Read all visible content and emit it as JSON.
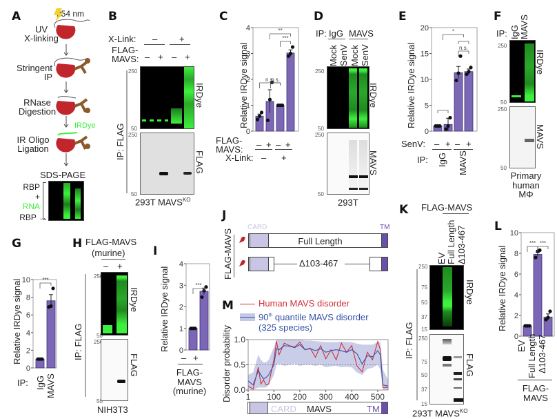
{
  "panels": {
    "A": {
      "label": "A",
      "uv_wavelength": "254 nm",
      "steps": [
        "UV\nX-linking",
        "Stringent\nIP",
        "RNase\nDigestion",
        "IR Oligo\nLigation"
      ],
      "step1": "UV",
      "step1b": "X-linking",
      "step2": "Stringent",
      "step2b": "IP",
      "step3": "RNase",
      "step3b": "Digestion",
      "step4": "IR Oligo",
      "step4b": "Ligation",
      "irdye_tag": "IRDye",
      "gel_title": "SDS-PAGE",
      "gel_rbp": "RBP",
      "gel_plus": "+",
      "gel_rna": "RNA",
      "gel_rbp_arrow": "RBP →"
    },
    "B": {
      "label": "B",
      "xlink_label": "X-Link:",
      "xlink_minus": "–",
      "xlink_plus": "+",
      "flag_label1": "FLAG-",
      "flag_label2": "MAVS:",
      "lanes": [
        "–",
        "+",
        "–",
        "+"
      ],
      "mw_top": "250",
      "mw_bottom": "50",
      "blot_top": "IRDye",
      "blot_bottom": "FLAG",
      "ip": "IP: FLAG",
      "cell_line": "293T MAVS",
      "cell_sup": "KO"
    },
    "C": {
      "label": "C",
      "ylabel": "Relative IRDye signal",
      "flag1": "FLAG-",
      "flag2": "MAVS:",
      "xlink": "X-Link:",
      "lanes": [
        "–",
        "+",
        "–",
        "+"
      ],
      "xlink_vals": [
        "–",
        "+"
      ],
      "sig": [
        "n.s.",
        "n.s.",
        "**",
        "***"
      ]
    },
    "D": {
      "label": "D",
      "ip": "IP:",
      "ip_igg": "IgG",
      "ip_mavs": "MAVS",
      "lanes": [
        "Mock",
        "SenV",
        "Mock",
        "SenV"
      ],
      "mw_top": "250",
      "mw_bottom": "50",
      "blot_top": "IRDye",
      "blot_bottom": "MAVS",
      "cell_line": "293T"
    },
    "E": {
      "label": "E",
      "ylabel": "Relative IRDye signal",
      "senv": "SenV:",
      "lanes": [
        "–",
        "+",
        "–",
        "+"
      ],
      "ip": "IP:",
      "ip_groups": [
        "IgG",
        "MAVS"
      ],
      "sig": [
        "*",
        "n.s."
      ]
    },
    "F": {
      "label": "F",
      "ip": "IP:",
      "lanes": [
        "IgG",
        "MAVS"
      ],
      "mw_top": "250",
      "mw_bottom": "50",
      "blot_top": "IRDye",
      "blot_bottom": "MAVS",
      "cell1": "Primary",
      "cell2": "human",
      "cell3": "MΦ"
    },
    "G": {
      "label": "G",
      "ylabel": "Relative IRDye signal",
      "ip": "IP:",
      "categories": [
        "IgG",
        "MAVS"
      ],
      "sig": "***"
    },
    "H": {
      "label": "H",
      "title1": "FLAG-MAVS",
      "title2": "(murine)",
      "lanes": [
        "–",
        "+"
      ],
      "mw_top": "250",
      "mw_bottom": "50",
      "blot_top": "IRDye",
      "blot_bottom": "FLAG",
      "ip": "IP: FLAG",
      "cell_line": "NIH3T3"
    },
    "I": {
      "label": "I",
      "ylabel": "Relative IRDye signal",
      "lanes": [
        "–",
        "+"
      ],
      "x1": "FLAG-",
      "x2": "MAVS",
      "x3": "(murine)",
      "sig": "***"
    },
    "J": {
      "label": "J",
      "side": "FLAG-MAVS",
      "card": "CARD",
      "tm": "TM",
      "full": "Full Length",
      "delta": "Δ103-467"
    },
    "K": {
      "label": "K",
      "title": "FLAG-MAVS",
      "lanes": [
        "EV",
        "Full Length",
        "Δ103-467"
      ],
      "mw": [
        "250",
        "75",
        "50",
        "37",
        "15"
      ],
      "blot_top": "IRDye",
      "blot_bottom": "FLAG",
      "ip": "IP: FLAG",
      "cell_line": "293T MAVS",
      "cell_sup": "KO"
    },
    "L": {
      "label": "L",
      "ylabel": "Relative IRDye signal",
      "categories": [
        "EV",
        "Full Length",
        "Δ103-467"
      ],
      "x1": "FLAG-",
      "x2": "MAVS",
      "sig": [
        "***",
        "***"
      ]
    },
    "M": {
      "label": "M",
      "legend_human": "Human MAVS disorder",
      "legend_q1": "90",
      "legend_q_sup": "th",
      "legend_q2": " quantile MAVS disorder",
      "legend_q3": "(325 species)",
      "ylabel": "Disorder probability",
      "domain_card": "CARD",
      "domain_mavs": "MAVS",
      "domain_tm": "TM"
    }
  },
  "colors": {
    "bar": "#7b67b5",
    "bar_edge": "#3d2f74",
    "green": "#3df03d",
    "red": "#d0303a",
    "blue": "#3651a8",
    "band": "#c3c8e6",
    "card": "#c8c6e4",
    "tm": "#6a50a8",
    "protein": "#c0262c",
    "antibody": "#8a5a2b"
  },
  "chart_data": [
    {
      "id": "C",
      "type": "bar",
      "ylabel": "Relative IRDye signal",
      "ylim": [
        0,
        4
      ],
      "yticks": [
        0,
        1,
        2,
        3,
        4
      ],
      "categories": [
        "X-Link – / FLAG-MAVS –",
        "X-Link – / FLAG-MAVS +",
        "X-Link + / FLAG-MAVS –",
        "X-Link + / FLAG-MAVS +"
      ],
      "values": [
        0.58,
        1.15,
        1.0,
        3.02
      ],
      "errors": [
        0.08,
        0.45,
        0.0,
        0.12
      ],
      "points": [
        [
          0.45,
          0.58,
          0.72
        ],
        [
          0.42,
          1.22,
          1.88
        ],
        [
          1.0,
          1.0,
          1.0
        ],
        [
          2.9,
          3.0,
          3.25
        ]
      ],
      "annotations": [
        {
          "pair": [
            0,
            2
          ],
          "text": "n.s."
        },
        {
          "pair": [
            1,
            2
          ],
          "text": "n.s."
        },
        {
          "pair": [
            1,
            3
          ],
          "text": "**"
        },
        {
          "pair": [
            2,
            3
          ],
          "text": "***"
        }
      ]
    },
    {
      "id": "E",
      "type": "bar",
      "ylabel": "Relative IRDye signal",
      "ylim": [
        0,
        20
      ],
      "yticks": [
        0,
        5,
        10,
        15,
        20
      ],
      "categories": [
        "IgG SenV –",
        "IgG SenV +",
        "MAVS SenV –",
        "MAVS SenV +"
      ],
      "values": [
        1.0,
        1.3,
        11.3,
        11.5
      ],
      "errors": [
        0.0,
        1.2,
        1.2,
        0.5
      ],
      "points": [
        [
          1,
          1,
          1
        ],
        [
          0.4,
          1.0,
          2.6
        ],
        [
          9.8,
          11.2,
          14.5
        ],
        [
          11.0,
          11.5,
          12.3
        ]
      ],
      "annotations": [
        {
          "groups": [
            "IgG",
            "MAVS"
          ],
          "text": "*"
        },
        {
          "pair": [
            2,
            3
          ],
          "text": "n.s."
        }
      ]
    },
    {
      "id": "G",
      "type": "bar",
      "ylabel": "Relative IRDye signal",
      "ylim": [
        0,
        10
      ],
      "yticks": [
        0,
        2,
        4,
        6,
        8,
        10
      ],
      "categories": [
        "IgG",
        "MAVS"
      ],
      "values": [
        1.0,
        7.6
      ],
      "errors": [
        0.0,
        0.7
      ],
      "points": [
        [
          1,
          1,
          1
        ],
        [
          6.9,
          7.0,
          9.0
        ]
      ],
      "annotations": [
        {
          "pair": [
            0,
            1
          ],
          "text": "***"
        }
      ]
    },
    {
      "id": "I",
      "type": "bar",
      "ylabel": "Relative IRDye signal",
      "ylim": [
        0,
        4
      ],
      "yticks": [
        0,
        1,
        2,
        3,
        4
      ],
      "categories": [
        "–",
        "+"
      ],
      "values": [
        1.0,
        2.72
      ],
      "errors": [
        0.0,
        0.15
      ],
      "points": [
        [
          1,
          1,
          1
        ],
        [
          2.45,
          2.75,
          2.92
        ]
      ],
      "annotations": [
        {
          "pair": [
            0,
            1
          ],
          "text": "***"
        }
      ]
    },
    {
      "id": "L",
      "type": "bar",
      "ylabel": "Relative IRDye signal",
      "ylim": [
        0,
        10
      ],
      "yticks": [
        0,
        2,
        4,
        6,
        8,
        10
      ],
      "categories": [
        "EV",
        "Full Length",
        "Δ103-467"
      ],
      "values": [
        1.0,
        7.9,
        1.85
      ],
      "errors": [
        0.0,
        0.2,
        0.3
      ],
      "points": [
        [
          1,
          1,
          1
        ],
        [
          7.6,
          8.2,
          8.3
        ],
        [
          1.6,
          1.8,
          2.4
        ]
      ],
      "annotations": [
        {
          "pair": [
            0,
            1
          ],
          "text": "***"
        },
        {
          "pair": [
            1,
            2
          ],
          "text": "***"
        }
      ]
    },
    {
      "id": "M",
      "type": "line",
      "ylabel": "Disorder probability",
      "xlim": [
        1,
        540
      ],
      "ylim": [
        0,
        1.0
      ],
      "xticks": [
        1,
        100,
        200,
        300,
        400,
        500
      ],
      "yticks": [
        0.0,
        0.5,
        1.0
      ],
      "reference_line": 0.5,
      "x": [
        1,
        20,
        40,
        50,
        60,
        70,
        80,
        100,
        110,
        120,
        140,
        160,
        180,
        200,
        220,
        240,
        260,
        280,
        300,
        320,
        340,
        360,
        380,
        400,
        420,
        440,
        460,
        480,
        500,
        510,
        520,
        540
      ],
      "series": [
        {
          "name": "Human MAVS disorder",
          "values": [
            0.08,
            0.02,
            0.45,
            0.12,
            0.2,
            0.1,
            0.12,
            0.6,
            0.97,
            0.7,
            0.93,
            0.88,
            0.85,
            0.95,
            0.8,
            0.83,
            0.65,
            0.88,
            0.62,
            0.8,
            0.6,
            0.93,
            0.75,
            0.88,
            0.48,
            0.36,
            0.75,
            0.6,
            0.96,
            0.8,
            0.05,
            0.05
          ]
        },
        {
          "name": "90th quantile MAVS disorder (325 species)",
          "values": [
            0.18,
            0.1,
            0.38,
            0.3,
            0.22,
            0.25,
            0.3,
            0.5,
            0.82,
            0.8,
            0.88,
            0.87,
            0.84,
            0.9,
            0.8,
            0.82,
            0.78,
            0.82,
            0.75,
            0.78,
            0.8,
            0.78,
            0.75,
            0.8,
            0.72,
            0.52,
            0.68,
            0.66,
            0.78,
            0.7,
            0.1,
            0.08
          ]
        }
      ],
      "band_upper": [
        0.3,
        0.35,
        0.7,
        0.6,
        0.55,
        0.55,
        0.6,
        0.85,
        1.0,
        1.0,
        1.0,
        1.0,
        1.0,
        1.0,
        0.98,
        0.98,
        0.97,
        0.96,
        0.95,
        0.95,
        0.95,
        0.96,
        0.95,
        0.95,
        0.92,
        0.9,
        0.9,
        0.9,
        0.95,
        0.95,
        0.4,
        0.2
      ],
      "band_lower": [
        0.02,
        0.0,
        0.05,
        0.05,
        0.05,
        0.05,
        0.1,
        0.3,
        0.5,
        0.52,
        0.48,
        0.5,
        0.52,
        0.48,
        0.5,
        0.5,
        0.48,
        0.5,
        0.45,
        0.47,
        0.48,
        0.45,
        0.46,
        0.45,
        0.35,
        0.3,
        0.42,
        0.44,
        0.5,
        0.4,
        0.0,
        0.0
      ],
      "domain_bar": [
        "CARD",
        "MAVS",
        "TM"
      ]
    }
  ]
}
